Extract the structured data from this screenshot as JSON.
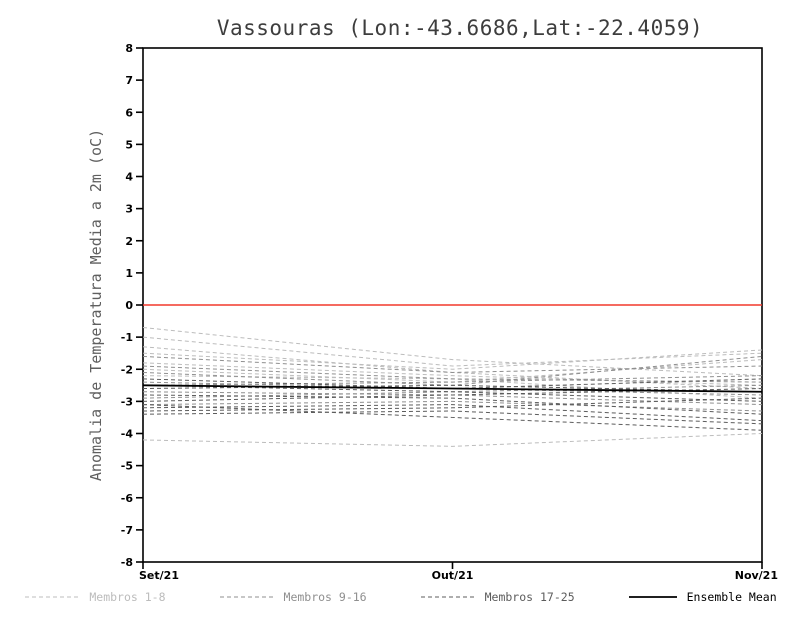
{
  "chart_data": {
    "type": "line",
    "title": "Vassouras (Lon:-43.6686,Lat:-22.4059)",
    "ylabel": "Anomalia de Temperatura Media a 2m (oC)",
    "x_categories": [
      "Set/21",
      "Out/21",
      "Nov/21"
    ],
    "ylim": [
      -8,
      8
    ],
    "y_tick_step": 1,
    "grid": false,
    "legend_position": "bottom",
    "frame_color": "#000000",
    "zero_line": {
      "value": 0,
      "color": "#f2392c"
    },
    "groups": [
      {
        "name": "Membros 1-8",
        "color": "#bcbcbc",
        "dash": "4 3",
        "series": [
          [
            -0.7,
            -1.7,
            -2.2
          ],
          [
            -1.0,
            -1.9,
            -1.5
          ],
          [
            -1.3,
            -2.1,
            -2.6
          ],
          [
            -1.5,
            -2.0,
            -1.4
          ],
          [
            -1.8,
            -2.2,
            -2.5
          ],
          [
            -2.0,
            -2.4,
            -1.7
          ],
          [
            -2.2,
            -2.3,
            -2.9
          ],
          [
            -4.2,
            -4.4,
            -4.0
          ]
        ]
      },
      {
        "name": "Membros 9-16",
        "color": "#8f8f8f",
        "dash": "4 3",
        "series": [
          [
            -1.6,
            -2.1,
            -1.9
          ],
          [
            -1.9,
            -2.3,
            -2.4
          ],
          [
            -2.1,
            -2.5,
            -1.6
          ],
          [
            -2.4,
            -2.6,
            -2.8
          ],
          [
            -2.5,
            -2.4,
            -2.2
          ],
          [
            -2.7,
            -2.8,
            -3.1
          ],
          [
            -2.9,
            -2.7,
            -2.5
          ],
          [
            -3.1,
            -3.0,
            -3.3
          ]
        ]
      },
      {
        "name": "Membros 17-25",
        "color": "#5c5c5c",
        "dash": "4 3",
        "series": [
          [
            -2.3,
            -2.6,
            -2.3
          ],
          [
            -2.5,
            -2.7,
            -3.0
          ],
          [
            -2.6,
            -2.5,
            -2.7
          ],
          [
            -2.8,
            -2.9,
            -3.4
          ],
          [
            -3.0,
            -2.8,
            -2.6
          ],
          [
            -3.2,
            -3.1,
            -3.6
          ],
          [
            -3.3,
            -3.2,
            -2.9
          ],
          [
            -3.4,
            -3.3,
            -3.7
          ],
          [
            -3.1,
            -3.5,
            -3.9
          ]
        ]
      }
    ],
    "ensemble_mean": {
      "name": "Ensemble Mean",
      "color": "#000000",
      "values": [
        -2.5,
        -2.6,
        -2.7
      ]
    }
  }
}
